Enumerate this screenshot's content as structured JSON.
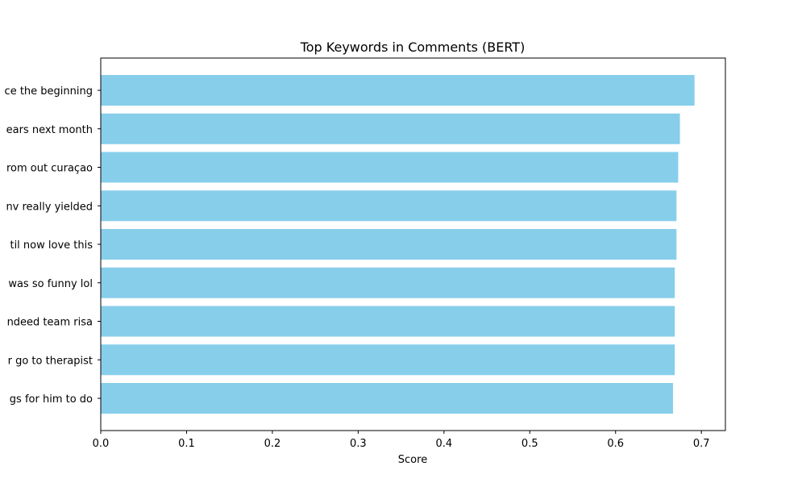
{
  "chart_data": {
    "type": "bar",
    "orientation": "horizontal",
    "title": "Top Keywords in Comments (BERT)",
    "xlabel": "Score",
    "ylabel": "",
    "xlim": [
      0,
      0.728
    ],
    "xticks": [
      0.0,
      0.1,
      0.2,
      0.3,
      0.4,
      0.5,
      0.6,
      0.7
    ],
    "xtick_labels": [
      "0.0",
      "0.1",
      "0.2",
      "0.3",
      "0.4",
      "0.5",
      "0.6",
      "0.7"
    ],
    "bar_color": "#87ceeb",
    "grid": false,
    "categories": [
      "ce the beginning",
      "ears next month",
      "rom out curaçao",
      "nv really yielded",
      "til now love this",
      "was so funny lol",
      "ndeed team risa",
      "r go to therapist",
      "gs for him to do"
    ],
    "values": [
      0.692,
      0.675,
      0.673,
      0.671,
      0.671,
      0.669,
      0.669,
      0.669,
      0.667
    ]
  }
}
